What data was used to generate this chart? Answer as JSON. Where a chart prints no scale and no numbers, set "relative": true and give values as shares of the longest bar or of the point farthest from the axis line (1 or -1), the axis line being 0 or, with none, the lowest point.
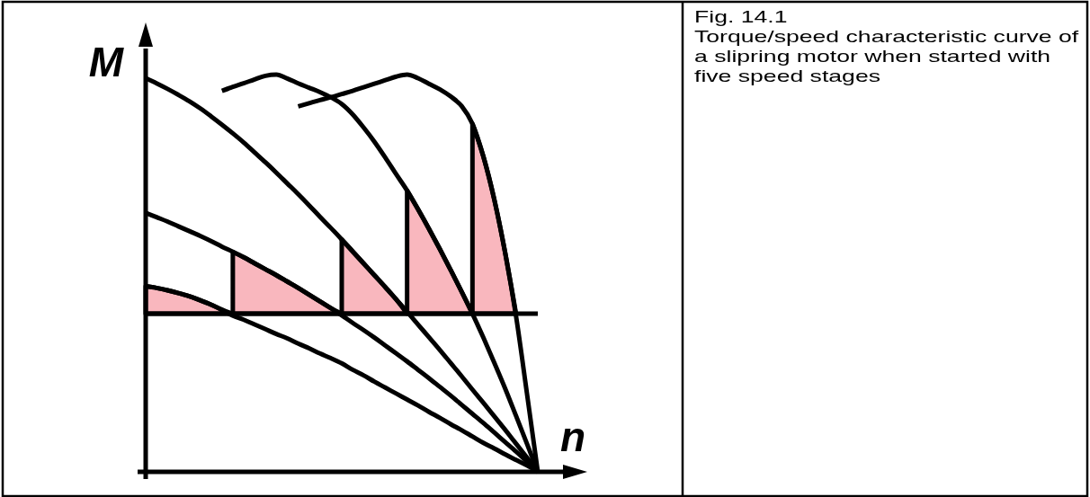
{
  "chart_data": {
    "type": "line",
    "relative": true,
    "title": "Fig. 14.1",
    "subtitle": "Torque/speed characteristic curve of a slipring motor when started with five speed stages",
    "xlabel": "n",
    "ylabel": "M",
    "categories": [
      null,
      null,
      null,
      null,
      null,
      null,
      null,
      null,
      null,
      null,
      null,
      null,
      null,
      null,
      null,
      null,
      null,
      null,
      null,
      null,
      null,
      null,
      null,
      null,
      null,
      null,
      null,
      null,
      null,
      null,
      null,
      null,
      null,
      null,
      null,
      null,
      null
    ],
    "series": [
      {
        "color": "#000000",
        "values": [
          0.467,
          0.463,
          0.457,
          0.45,
          0.442,
          0.432,
          0.421,
          0.408,
          0.393,
          0.383,
          0.371,
          0.359,
          0.347,
          0.336,
          0.323,
          0.311,
          0.298,
          0.286,
          0.273,
          0.257,
          0.243,
          0.227,
          0.212,
          0.197,
          0.182,
          0.167,
          0.151,
          0.136,
          0.12,
          0.105,
          0.089,
          0.073,
          0.059,
          0.044,
          0.03,
          0.016,
          0
        ],
        "lower": [
          0.398,
          0.398,
          0.398,
          0.398,
          0.398,
          0.398,
          0.398,
          0.398,
          0.398,
          null,
          null,
          null,
          null,
          null,
          null,
          null,
          null,
          null,
          null,
          null,
          null,
          null,
          null,
          null,
          null,
          null,
          null,
          null,
          null,
          null,
          null,
          null,
          null,
          null,
          null,
          null,
          null
        ],
        "upper": [
          0.467,
          0.463,
          0.457,
          0.45,
          0.442,
          0.432,
          0.421,
          0.408,
          0.398,
          null,
          null,
          null,
          null,
          null,
          null,
          null,
          null,
          null,
          null,
          null,
          null,
          null,
          null,
          null,
          null,
          null,
          null,
          null,
          null,
          null,
          null,
          null,
          null,
          null,
          null,
          null,
          null
        ]
      },
      {
        "color": "#000000",
        "values": [
          0.652,
          0.641,
          0.63,
          0.618,
          0.606,
          0.594,
          0.581,
          0.567,
          0.554,
          0.54,
          0.525,
          0.51,
          0.495,
          0.479,
          0.463,
          0.446,
          0.429,
          0.412,
          0.394,
          0.375,
          0.357,
          0.338,
          0.318,
          0.298,
          0.278,
          0.257,
          0.236,
          0.214,
          0.192,
          0.169,
          0.146,
          0.123,
          0.099,
          0.075,
          0.051,
          0.026,
          0
        ],
        "lower": [
          null,
          null,
          null,
          null,
          null,
          null,
          null,
          null,
          0.398,
          0.398,
          0.398,
          0.398,
          0.398,
          0.398,
          0.398,
          0.398,
          0.398,
          0.398,
          0.398,
          null,
          null,
          null,
          null,
          null,
          null,
          null,
          null,
          null,
          null,
          null,
          null,
          null,
          null,
          null,
          null,
          null,
          null
        ],
        "upper": [
          null,
          null,
          null,
          null,
          null,
          null,
          null,
          null,
          0.554,
          0.54,
          0.525,
          0.51,
          0.495,
          0.479,
          0.463,
          0.446,
          0.429,
          0.412,
          0.398,
          null,
          null,
          null,
          null,
          null,
          null,
          null,
          null,
          null,
          null,
          null,
          null,
          null,
          null,
          null,
          null,
          null,
          null
        ]
      },
      {
        "color": "#000000",
        "values": [
          0.991,
          0.978,
          0.964,
          0.949,
          0.933,
          0.915,
          0.895,
          0.874,
          0.852,
          0.829,
          0.804,
          0.779,
          0.753,
          0.726,
          0.699,
          0.671,
          0.642,
          0.614,
          0.585,
          0.555,
          0.525,
          0.495,
          0.465,
          0.434,
          0.403,
          0.371,
          0.339,
          0.307,
          0.274,
          0.241,
          0.207,
          0.174,
          0.14,
          0.106,
          0.071,
          0.036,
          0
        ],
        "lower": [
          null,
          null,
          null,
          null,
          null,
          null,
          null,
          null,
          null,
          null,
          null,
          null,
          null,
          null,
          null,
          null,
          null,
          null,
          0.398,
          0.398,
          0.398,
          0.398,
          0.398,
          0.398,
          0.398,
          null,
          null,
          null,
          null,
          null,
          null,
          null,
          null,
          null,
          null,
          null,
          null
        ],
        "upper": [
          null,
          null,
          null,
          null,
          null,
          null,
          null,
          null,
          null,
          null,
          null,
          null,
          null,
          null,
          null,
          null,
          null,
          null,
          0.585,
          0.555,
          0.525,
          0.495,
          0.465,
          0.434,
          0.398,
          null,
          null,
          null,
          null,
          null,
          null,
          null,
          null,
          null,
          null,
          null,
          null
        ]
      },
      {
        "color": "#000000",
        "values": [
          null,
          null,
          null,
          null,
          null,
          null,
          null,
          0.959,
          0.969,
          0.978,
          0.988,
          0.997,
          1,
          0.99,
          0.978,
          0.967,
          0.956,
          0.943,
          0.926,
          0.9,
          0.867,
          0.831,
          0.791,
          0.749,
          0.708,
          0.661,
          0.612,
          0.561,
          0.508,
          0.454,
          0.398,
          0.338,
          0.275,
          0.21,
          0.141,
          0.071,
          0
        ],
        "lower": [
          null,
          null,
          null,
          null,
          null,
          null,
          null,
          null,
          null,
          null,
          null,
          null,
          null,
          null,
          null,
          null,
          null,
          null,
          null,
          null,
          null,
          null,
          null,
          null,
          0.398,
          0.398,
          0.398,
          0.398,
          0.398,
          0.398,
          0.398,
          null,
          null,
          null,
          null,
          null,
          null
        ],
        "upper": [
          null,
          null,
          null,
          null,
          null,
          null,
          null,
          null,
          null,
          null,
          null,
          null,
          null,
          null,
          null,
          null,
          null,
          null,
          null,
          null,
          null,
          null,
          null,
          null,
          0.708,
          0.661,
          0.612,
          0.561,
          0.508,
          0.454,
          0.398,
          null,
          null,
          null,
          null,
          null,
          null
        ]
      },
      {
        "color": "#000000",
        "values": [
          null,
          null,
          null,
          null,
          null,
          null,
          null,
          null,
          null,
          null,
          null,
          null,
          null,
          null,
          0.92,
          0.928,
          0.936,
          0.943,
          0.951,
          0.959,
          0.968,
          0.977,
          0.986,
          0.995,
          1,
          0.991,
          0.977,
          0.963,
          0.945,
          0.921,
          0.876,
          0.794,
          0.686,
          0.552,
          0.392,
          0.198,
          0
        ],
        "lower": [
          null,
          null,
          null,
          null,
          null,
          null,
          null,
          null,
          null,
          null,
          null,
          null,
          null,
          null,
          null,
          null,
          null,
          null,
          null,
          null,
          null,
          null,
          null,
          null,
          null,
          null,
          null,
          null,
          null,
          null,
          0.398,
          0.398,
          0.398,
          0.398,
          0.398,
          null,
          null
        ],
        "upper": [
          null,
          null,
          null,
          null,
          null,
          null,
          null,
          null,
          null,
          null,
          null,
          null,
          null,
          null,
          null,
          null,
          null,
          null,
          null,
          null,
          null,
          null,
          null,
          null,
          null,
          null,
          null,
          null,
          null,
          null,
          0.876,
          0.794,
          0.686,
          0.552,
          0.398,
          null,
          null
        ]
      }
    ],
    "ref_lines": [
      {
        "axis": "y",
        "value": 0.398,
        "color": "#000000"
      }
    ]
  }
}
